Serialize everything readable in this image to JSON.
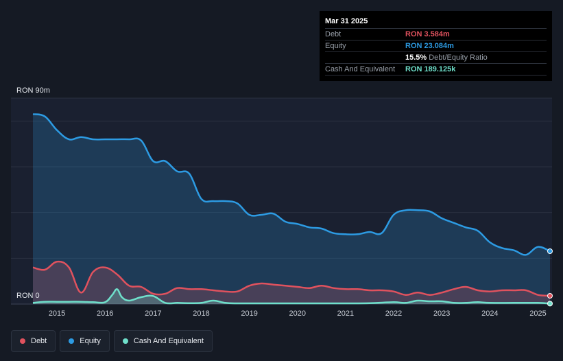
{
  "tooltip": {
    "date": "Mar 31 2025",
    "debt_label": "Debt",
    "debt_value": "RON 3.584m",
    "equity_label": "Equity",
    "equity_value": "RON 23.084m",
    "ratio_pct": "15.5%",
    "ratio_label": "Debt/Equity Ratio",
    "cash_label": "Cash And Equivalent",
    "cash_value": "RON 189.125k"
  },
  "colors": {
    "debt": "#e0525e",
    "equity": "#2d9be3",
    "cash": "#6fe0cb"
  },
  "legend": [
    {
      "label": "Debt",
      "color": "#e0525e"
    },
    {
      "label": "Equity",
      "color": "#2d9be3"
    },
    {
      "label": "Cash And Equivalent",
      "color": "#6fe0cb"
    }
  ],
  "chart_data": {
    "type": "area",
    "title": "",
    "xlabel": "",
    "ylabel": "",
    "y_top_label": "RON 90m",
    "y_bottom_label": "RON 0",
    "ylim": [
      0,
      90
    ],
    "xlim": [
      2014.5,
      2025.25
    ],
    "x_ticks": [
      "2015",
      "2016",
      "2017",
      "2018",
      "2019",
      "2020",
      "2021",
      "2022",
      "2023",
      "2024",
      "2025"
    ],
    "series": [
      {
        "name": "Equity",
        "x": [
          2014.5,
          2014.75,
          2015.0,
          2015.25,
          2015.5,
          2015.75,
          2016.0,
          2016.25,
          2016.5,
          2016.75,
          2017.0,
          2017.25,
          2017.5,
          2017.75,
          2018.0,
          2018.25,
          2018.5,
          2018.75,
          2019.0,
          2019.25,
          2019.5,
          2019.75,
          2020.0,
          2020.25,
          2020.5,
          2020.75,
          2021.0,
          2021.25,
          2021.5,
          2021.75,
          2022.0,
          2022.25,
          2022.5,
          2022.75,
          2023.0,
          2023.25,
          2023.5,
          2023.75,
          2024.0,
          2024.25,
          2024.5,
          2024.75,
          2025.0,
          2025.25
        ],
        "values": [
          83,
          82,
          76,
          72,
          73,
          72,
          72,
          72,
          72,
          71.5,
          62.5,
          62.5,
          58,
          57,
          46,
          45,
          45,
          44,
          39,
          39,
          39.5,
          36,
          35,
          33.5,
          33,
          31,
          30.5,
          30.5,
          31.5,
          31,
          39,
          41,
          41,
          40.5,
          37.5,
          35.5,
          33.5,
          32,
          27,
          24.5,
          23.5,
          21.5,
          25,
          23.1
        ]
      },
      {
        "name": "Debt",
        "x": [
          2014.5,
          2014.75,
          2015.0,
          2015.25,
          2015.5,
          2015.75,
          2016.0,
          2016.25,
          2016.5,
          2016.75,
          2017.0,
          2017.25,
          2017.5,
          2017.75,
          2018.0,
          2018.25,
          2018.5,
          2018.75,
          2019.0,
          2019.25,
          2019.5,
          2019.75,
          2020.0,
          2020.25,
          2020.5,
          2020.75,
          2021.0,
          2021.25,
          2021.5,
          2021.75,
          2022.0,
          2022.25,
          2022.5,
          2022.75,
          2023.0,
          2023.25,
          2023.5,
          2023.75,
          2024.0,
          2024.25,
          2024.5,
          2024.75,
          2025.0,
          2025.25
        ],
        "values": [
          16,
          15,
          18.5,
          16,
          5,
          14,
          16,
          13,
          8,
          7.5,
          4.5,
          4.5,
          7,
          6.5,
          6.5,
          6,
          5.5,
          5.5,
          8,
          9,
          8.5,
          8,
          7.5,
          7,
          8,
          7,
          6.5,
          6.5,
          6,
          6,
          5.5,
          4,
          5,
          4,
          5,
          6.5,
          7.5,
          6,
          5.5,
          6,
          6,
          6,
          4,
          3.6
        ]
      },
      {
        "name": "Cash And Equivalent",
        "x": [
          2014.5,
          2014.75,
          2015.0,
          2015.25,
          2015.5,
          2015.75,
          2016.0,
          2016.15,
          2016.25,
          2016.35,
          2016.5,
          2016.75,
          2017.0,
          2017.25,
          2017.5,
          2017.75,
          2018.0,
          2018.25,
          2018.5,
          2018.75,
          2019.0,
          2019.5,
          2020.0,
          2020.5,
          2021.0,
          2021.5,
          2022.0,
          2022.25,
          2022.5,
          2022.75,
          2023.0,
          2023.25,
          2023.5,
          2023.75,
          2024.0,
          2024.5,
          2025.0,
          2025.25
        ],
        "values": [
          0.5,
          1,
          1,
          1,
          1,
          0.8,
          0.8,
          4,
          6.5,
          3,
          1.5,
          3,
          3.5,
          0.5,
          0.5,
          0.4,
          0.5,
          1.5,
          0.5,
          0.3,
          0.3,
          0.3,
          0.3,
          0.3,
          0.3,
          0.4,
          0.8,
          0.5,
          1.5,
          1.2,
          1.2,
          0.5,
          0.5,
          0.8,
          0.5,
          0.5,
          0.5,
          0.19
        ]
      }
    ]
  }
}
